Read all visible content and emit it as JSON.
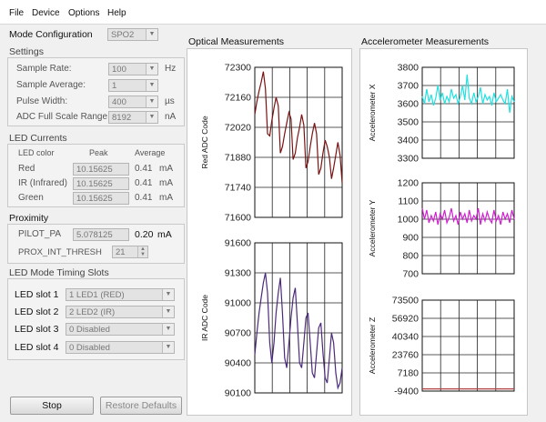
{
  "menu": [
    "File",
    "Device",
    "Options",
    "Help"
  ],
  "mode_config": {
    "label": "Mode Configuration",
    "value": "SPO2"
  },
  "settings": {
    "title": "Settings",
    "rows": [
      {
        "label": "Sample Rate:",
        "value": "100",
        "unit": "Hz"
      },
      {
        "label": "Sample Average:",
        "value": "1",
        "unit": ""
      },
      {
        "label": "Pulse Width:",
        "value": "400",
        "unit": "µs"
      },
      {
        "label": "ADC Full Scale Range",
        "value": "8192",
        "unit": "nA"
      }
    ]
  },
  "led_currents": {
    "title": "LED Currents",
    "col_color": "LED color",
    "col_peak": "Peak",
    "col_avg": "Average",
    "rows": [
      {
        "color": "Red",
        "peak": "10.15625",
        "avg": "0.41",
        "unit": "mA"
      },
      {
        "color": "IR (Infrared)",
        "peak": "10.15625",
        "avg": "0.41",
        "unit": "mA"
      },
      {
        "color": "Green",
        "peak": "10.15625",
        "avg": "0.41",
        "unit": "mA"
      }
    ]
  },
  "proximity": {
    "title": "Proximity",
    "pilot_label": "PILOT_PA",
    "pilot_value": "5.078125",
    "pilot_avg": "0.20",
    "pilot_unit": "mA",
    "thresh_label": "PROX_INT_THRESH",
    "thresh_value": "21"
  },
  "timing_slots": {
    "title": "LED Mode Timing Slots",
    "slots": [
      {
        "label": "LED slot 1",
        "value": "1 LED1 (RED)"
      },
      {
        "label": "LED slot 2",
        "value": "2 LED2 (IR)"
      },
      {
        "label": "LED slot 3",
        "value": "0 Disabled"
      },
      {
        "label": "LED slot 4",
        "value": "0 Disabled"
      }
    ]
  },
  "buttons": {
    "stop": "Stop",
    "restore": "Restore Defaults"
  },
  "optical_title": "Optical Measurements",
  "accel_title": "Accelerometer Measurements",
  "colors": {
    "red_trace": "#7a1212",
    "ir_trace": "#4b2a7a",
    "accel_x": "#22e0e0",
    "accel_y": "#d020d0",
    "accel_z": "#b04040"
  },
  "chart_data": [
    {
      "type": "line",
      "ylabel": "Red ADC Code",
      "yticks": [
        "72300",
        "72160",
        "72020",
        "71880",
        "71740",
        "71600"
      ],
      "ylim": [
        71600,
        72300
      ],
      "series": [
        {
          "values": [
            72080,
            72140,
            72190,
            72230,
            72280,
            72200,
            71990,
            71980,
            72050,
            72110,
            72160,
            72120,
            71900,
            71930,
            71990,
            72040,
            72090,
            72060,
            71870,
            71900,
            71970,
            72020,
            72080,
            72030,
            71830,
            71860,
            71930,
            71990,
            72040,
            71990,
            71800,
            71830,
            71900,
            71960,
            71930,
            71880,
            71780,
            71830,
            71890,
            71950,
            71890,
            71760
          ]
        }
      ]
    },
    {
      "type": "line",
      "ylabel": "IR ADC Code",
      "yticks": [
        "91600",
        "91300",
        "91000",
        "90700",
        "90400",
        "90100"
      ],
      "ylim": [
        90100,
        91600
      ],
      "series": [
        {
          "values": [
            90480,
            90700,
            90900,
            91050,
            91200,
            91300,
            91100,
            90600,
            90400,
            90600,
            90900,
            91100,
            91250,
            90900,
            90450,
            90350,
            90600,
            90850,
            91050,
            91150,
            90800,
            90400,
            90350,
            90600,
            90850,
            90900,
            90600,
            90300,
            90250,
            90500,
            90750,
            90800,
            90500,
            90250,
            90200,
            90450,
            90700,
            90600,
            90300,
            90150,
            90200,
            90350
          ]
        }
      ]
    },
    {
      "type": "line",
      "ylabel": "Accelerometer X",
      "yticks": [
        "3800",
        "3700",
        "3600",
        "3500",
        "3400",
        "3300"
      ],
      "ylim": [
        3300,
        3800
      ],
      "series": [
        {
          "values": [
            3640,
            3600,
            3680,
            3610,
            3650,
            3590,
            3630,
            3700,
            3620,
            3660,
            3600,
            3640,
            3610,
            3680,
            3630,
            3650,
            3600,
            3640,
            3700,
            3620,
            3760,
            3630,
            3600,
            3660,
            3610,
            3640,
            3690,
            3600,
            3650,
            3620,
            3640,
            3590,
            3660,
            3610,
            3630,
            3650,
            3620,
            3600,
            3680,
            3550,
            3640,
            3610
          ]
        }
      ]
    },
    {
      "type": "line",
      "ylabel": "Accelerometer Y",
      "yticks": [
        "1200",
        "1100",
        "1000",
        "900",
        "800",
        "700"
      ],
      "ylim": [
        700,
        1200
      ],
      "series": [
        {
          "values": [
            1060,
            1000,
            1050,
            980,
            1020,
            990,
            1040,
            970,
            1030,
            1000,
            1050,
            980,
            1010,
            1060,
            990,
            1020,
            970,
            1040,
            1000,
            1030,
            980,
            1050,
            990,
            1020,
            1000,
            1060,
            970,
            1030,
            990,
            1040,
            1000,
            980,
            1050,
            990,
            1020,
            970,
            1040,
            1000,
            1030,
            980,
            1050,
            1000
          ]
        }
      ]
    },
    {
      "type": "line",
      "ylabel": "Accelerometer Z",
      "yticks": [
        "73500",
        "56920",
        "40340",
        "23760",
        "7180",
        "-9400"
      ],
      "ylim": [
        -9400,
        73500
      ],
      "series": [
        {
          "values": [
            -7400,
            -7400,
            -7400,
            -7400,
            -7400,
            -7400,
            -7400,
            -7400,
            -7400,
            -7400,
            -7400,
            -7400,
            -7400,
            -7400,
            -7400,
            -7400,
            -7400,
            -7400,
            -7400,
            -7400,
            -7400,
            -7400,
            -7400,
            -7400,
            -7400,
            -7400,
            -7400,
            -7400,
            -7400,
            -7400,
            -7400,
            -7400,
            -7400,
            -7400,
            -7400,
            -7400,
            -7400,
            -7400,
            -7400,
            -7400,
            -7400,
            -7400
          ]
        }
      ]
    }
  ]
}
